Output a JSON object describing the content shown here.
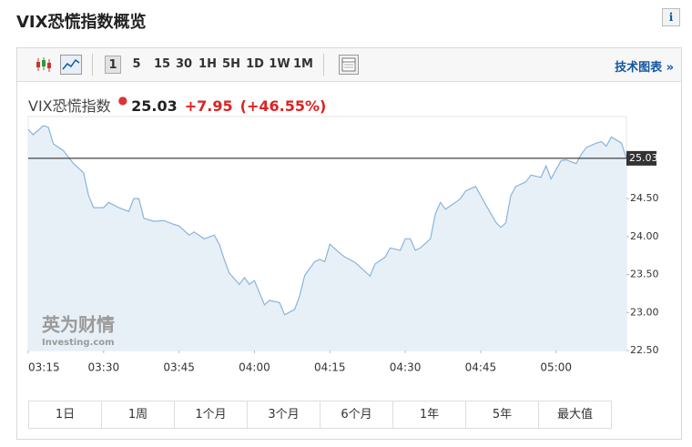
{
  "header": {
    "title": "VIX恐慌指数概览"
  },
  "toolbar": {
    "intervals": [
      "1",
      "5",
      "15",
      "30",
      "1H",
      "5H",
      "1D",
      "1W",
      "1M"
    ],
    "link": "技术图表 »"
  },
  "quote": {
    "name": "VIX恐慌指数",
    "price": "25.03",
    "change": "+7.95",
    "change_pct": "(+46.55%)"
  },
  "watermark": {
    "brand": "英为财情",
    "site": "Investing.com"
  },
  "chart_data": {
    "type": "line",
    "color": "#8ab4da",
    "area_color": "#e8f0f7",
    "x": [
      "03:15",
      "03:16",
      "03:18",
      "03:19",
      "03:20",
      "03:22",
      "03:24",
      "03:26",
      "03:27",
      "03:28",
      "03:30",
      "03:31",
      "03:33",
      "03:35",
      "03:36",
      "03:37",
      "03:38",
      "03:40",
      "03:42",
      "03:44",
      "03:45",
      "03:47",
      "03:48",
      "03:50",
      "03:52",
      "03:53",
      "03:54",
      "03:55",
      "03:57",
      "03:58",
      "03:59",
      "04:00",
      "04:02",
      "04:03",
      "04:05",
      "04:06",
      "04:08",
      "04:09",
      "04:10",
      "04:12",
      "04:13",
      "04:14",
      "04:15",
      "04:17",
      "04:18",
      "04:20",
      "04:22",
      "04:23",
      "04:24",
      "04:26",
      "04:27",
      "04:29",
      "04:30",
      "04:31",
      "04:32",
      "04:33",
      "04:35",
      "04:36",
      "04:37",
      "04:38",
      "04:40",
      "04:41",
      "04:42",
      "04:44",
      "04:45",
      "04:46",
      "04:48",
      "04:49",
      "04:50",
      "04:51",
      "04:52",
      "04:54",
      "04:55",
      "04:57",
      "04:58",
      "04:59",
      "05:00",
      "05:01",
      "05:02",
      "05:04",
      "05:05",
      "05:06",
      "05:08",
      "05:09",
      "05:10",
      "05:11",
      "05:13",
      "05:14"
    ],
    "values": [
      25.41,
      25.34,
      25.46,
      25.44,
      25.22,
      25.13,
      24.96,
      24.84,
      24.54,
      24.38,
      24.38,
      24.45,
      24.38,
      24.33,
      24.5,
      24.5,
      24.24,
      24.2,
      24.21,
      24.16,
      24.14,
      24.02,
      24.06,
      23.97,
      24.02,
      23.9,
      23.7,
      23.52,
      23.37,
      23.46,
      23.37,
      23.42,
      23.1,
      23.16,
      23.13,
      22.97,
      23.04,
      23.22,
      23.49,
      23.67,
      23.7,
      23.67,
      23.9,
      23.78,
      23.73,
      23.66,
      23.54,
      23.48,
      23.64,
      23.73,
      23.85,
      23.82,
      23.97,
      23.97,
      23.82,
      23.85,
      23.97,
      24.3,
      24.45,
      24.36,
      24.45,
      24.5,
      24.6,
      24.66,
      24.54,
      24.42,
      24.19,
      24.12,
      24.18,
      24.54,
      24.66,
      24.72,
      24.81,
      24.78,
      24.93,
      24.76,
      24.88,
      25.0,
      25.01,
      24.96,
      25.08,
      25.17,
      25.23,
      25.25,
      25.19,
      25.31,
      25.23,
      25.03
    ],
    "xlim": [
      "03:15",
      "05:14"
    ],
    "xticks": [
      "03:15",
      "03:30",
      "03:45",
      "04:00",
      "04:15",
      "04:30",
      "04:45",
      "05:00"
    ],
    "ylim": [
      22.5,
      25.58
    ],
    "yticks": [
      {
        "value": 22.5,
        "label": "22.50"
      },
      {
        "value": 23,
        "label": "23.00"
      },
      {
        "value": 23.5,
        "label": "23.50"
      },
      {
        "value": 24,
        "label": "24.00"
      },
      {
        "value": 24.5,
        "label": "24.50"
      }
    ],
    "last_value": 25.03
  },
  "ranges": [
    "1日",
    "1周",
    "1个月",
    "3个月",
    "6个月",
    "1年",
    "5年",
    "最大值"
  ]
}
